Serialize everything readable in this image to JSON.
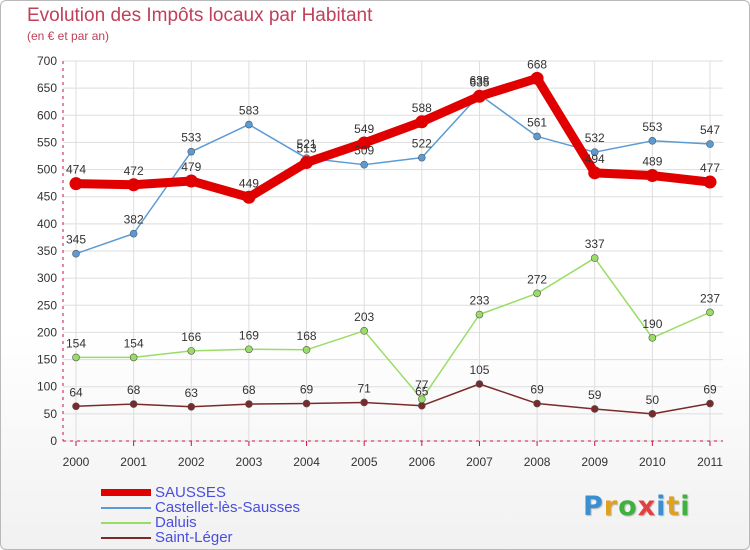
{
  "header": {
    "title": "Evolution des Impôts locaux par Habitant",
    "subtitle": "(en € et par an)"
  },
  "colors": {
    "title": "#c0405a",
    "legend_text": "#4a4ee0",
    "axis": "#d01040",
    "grid": "#dddddd"
  },
  "logo": {
    "text": "Proxiti",
    "letter_colors": [
      "#3a8fd0",
      "#e0a020",
      "#40b040",
      "#e04040",
      "#3a8fd0",
      "#e0a020",
      "#40b040"
    ]
  },
  "chart_data": {
    "type": "line",
    "title": "Evolution des Impôts locaux par Habitant",
    "subtitle": "(en € et par an)",
    "xlabel": "",
    "ylabel": "",
    "ylim": [
      0,
      700
    ],
    "yticks": [
      0,
      50,
      100,
      150,
      200,
      250,
      300,
      350,
      400,
      450,
      500,
      550,
      600,
      650,
      700
    ],
    "grid": true,
    "legend_position": "bottom-left",
    "x": [
      "2000",
      "2001",
      "2002",
      "2003",
      "2004",
      "2005",
      "2006",
      "2007",
      "2008",
      "2009",
      "2010",
      "2011"
    ],
    "series": [
      {
        "name": "SAUSSES",
        "color": "#e00000",
        "values": [
          474,
          472,
          479,
          449,
          513,
          549,
          588,
          635,
          668,
          494,
          489,
          477
        ]
      },
      {
        "name": "Castellet-lès-Sausses",
        "color": "#5b9bd5",
        "values": [
          345,
          382,
          533,
          583,
          521,
          509,
          522,
          638,
          561,
          532,
          553,
          547
        ]
      },
      {
        "name": "Daluis",
        "color": "#99dd66",
        "values": [
          154,
          154,
          166,
          169,
          168,
          203,
          77,
          233,
          272,
          337,
          190,
          237
        ]
      },
      {
        "name": "Saint-Léger",
        "color": "#7a2a2a",
        "values": [
          64,
          68,
          63,
          68,
          69,
          71,
          65,
          105,
          69,
          59,
          50,
          69
        ]
      }
    ]
  }
}
